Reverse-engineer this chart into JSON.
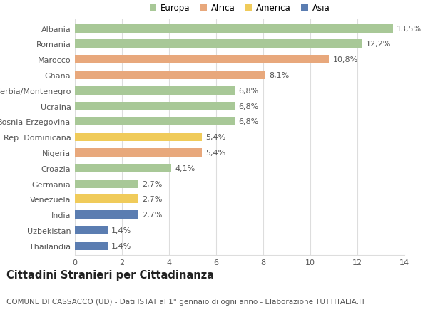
{
  "countries": [
    "Albania",
    "Romania",
    "Marocco",
    "Ghana",
    "Serbia/Montenegro",
    "Ucraina",
    "Bosnia-Erzegovina",
    "Rep. Dominicana",
    "Nigeria",
    "Croazia",
    "Germania",
    "Venezuela",
    "India",
    "Uzbekistan",
    "Thailandia"
  ],
  "values": [
    13.5,
    12.2,
    10.8,
    8.1,
    6.8,
    6.8,
    6.8,
    5.4,
    5.4,
    4.1,
    2.7,
    2.7,
    2.7,
    1.4,
    1.4
  ],
  "labels": [
    "13,5%",
    "12,2%",
    "10,8%",
    "8,1%",
    "6,8%",
    "6,8%",
    "6,8%",
    "5,4%",
    "5,4%",
    "4,1%",
    "2,7%",
    "2,7%",
    "2,7%",
    "1,4%",
    "1,4%"
  ],
  "continents": [
    "Europa",
    "Europa",
    "Africa",
    "Africa",
    "Europa",
    "Europa",
    "Europa",
    "America",
    "Africa",
    "Europa",
    "Europa",
    "America",
    "Asia",
    "Asia",
    "Asia"
  ],
  "continent_colors": {
    "Europa": "#a8c897",
    "Africa": "#e8a87c",
    "America": "#f0cb5a",
    "Asia": "#5b7db1"
  },
  "legend_order": [
    "Europa",
    "Africa",
    "America",
    "Asia"
  ],
  "legend_colors": [
    "#a8c897",
    "#e8a87c",
    "#f0cb5a",
    "#5b7db1"
  ],
  "xlim": [
    0,
    14
  ],
  "xticks": [
    0,
    2,
    4,
    6,
    8,
    10,
    12,
    14
  ],
  "background_color": "#ffffff",
  "grid_color": "#dddddd",
  "title": "Cittadini Stranieri per Cittadinanza",
  "subtitle": "COMUNE DI CASSACCO (UD) - Dati ISTAT al 1° gennaio di ogni anno - Elaborazione TUTTITALIA.IT",
  "bar_height": 0.55,
  "label_fontsize": 8,
  "tick_fontsize": 8,
  "title_fontsize": 10.5,
  "subtitle_fontsize": 7.5
}
